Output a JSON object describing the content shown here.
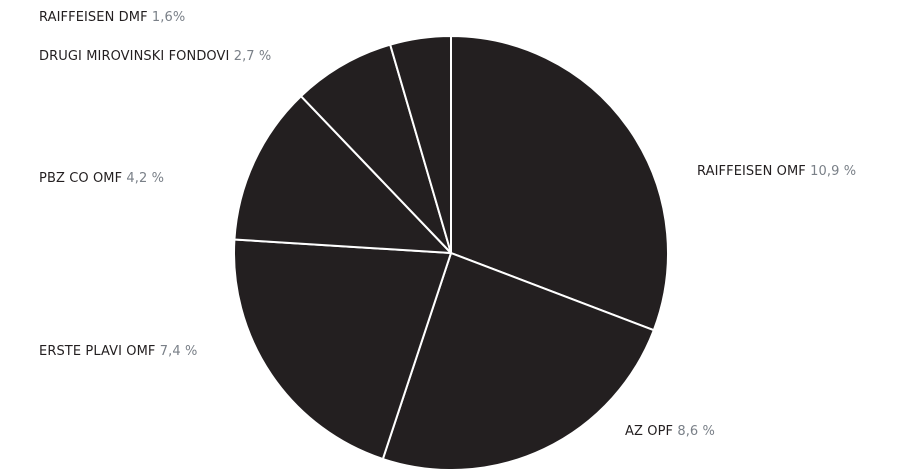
{
  "chart_data": {
    "type": "pie",
    "slices": [
      {
        "name": "RAIFFEISEN OMF",
        "value": 10.9,
        "value_label": "10,9 %"
      },
      {
        "name": "AZ OPF",
        "value": 8.6,
        "value_label": "8,6 %"
      },
      {
        "name": "ERSTE PLAVI OMF",
        "value": 7.4,
        "value_label": "7,4 %"
      },
      {
        "name": "PBZ CO OMF",
        "value": 4.2,
        "value_label": "4,2 %"
      },
      {
        "name": "DRUGI MIROVINSKI FONDOVI",
        "value": 2.7,
        "value_label": "2,7 %"
      },
      {
        "name": "RAIFFEISEN DMF",
        "value": 1.6,
        "value_label": "1,6%"
      }
    ],
    "start_angle": "12 o'clock",
    "direction": "clockwise",
    "colors": {
      "slice_fill": "#231f20",
      "slice_border": "#ffffff",
      "label_name": "#231f20",
      "label_value": "#7a8088"
    }
  }
}
